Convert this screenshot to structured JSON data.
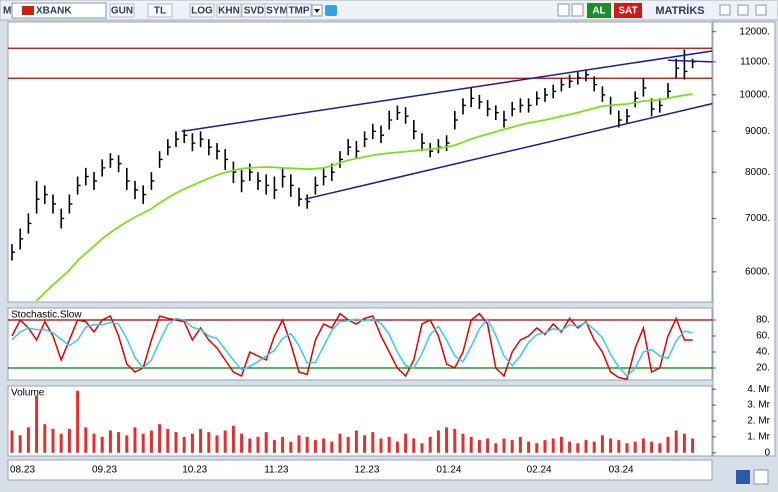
{
  "toolbar": {
    "symbol_prefix": "M",
    "symbol": "XBANK",
    "buttons": [
      "GUN",
      "TL",
      "LOG",
      "KHN",
      "SVD",
      "SYM",
      "TMP"
    ],
    "buy": "AL",
    "sell": "SAT",
    "brand": "MATRİKS"
  },
  "chart_data": [
    {
      "type": "ohlc",
      "log_scale": true,
      "ylim": [
        5500,
        12340
      ],
      "yticks": [
        {
          "value": 12000,
          "label": "12000."
        },
        {
          "value": 11000,
          "label": "11000."
        },
        {
          "value": 10000,
          "label": "10000."
        },
        {
          "value": 9000,
          "label": "9000."
        },
        {
          "value": 8000,
          "label": "8000."
        },
        {
          "value": 7000,
          "label": "7000."
        },
        {
          "value": 6000,
          "label": "6000."
        }
      ],
      "color": "#000000",
      "high": [
        6500,
        6800,
        7100,
        7800,
        7700,
        7500,
        7200,
        7500,
        7900,
        8100,
        8000,
        8300,
        8450,
        8400,
        8100,
        7800,
        7700,
        8000,
        8500,
        8800,
        9000,
        9050,
        8950,
        9000,
        8800,
        8700,
        8550,
        8250,
        8050,
        8200,
        8000,
        7950,
        7900,
        8100,
        7950,
        7650,
        7500,
        7900,
        8100,
        8200,
        8500,
        8800,
        8750,
        9000,
        9200,
        9150,
        9550,
        9700,
        9650,
        9300,
        8950,
        8700,
        8800,
        8900,
        9550,
        9900,
        10200,
        10000,
        9850,
        9700,
        9550,
        9800,
        9900,
        9900,
        10100,
        10200,
        10300,
        10500,
        10600,
        10700,
        10750,
        10550,
        10250,
        9950,
        9550,
        9600,
        10100,
        10500,
        9900,
        9900,
        10350,
        11100,
        11400,
        11100
      ],
      "low": [
        6200,
        6400,
        6700,
        7100,
        7300,
        7100,
        6800,
        7100,
        7500,
        7700,
        7600,
        7900,
        8100,
        8000,
        7600,
        7400,
        7300,
        7600,
        8100,
        8400,
        8600,
        8700,
        8500,
        8600,
        8400,
        8300,
        8050,
        7750,
        7550,
        7800,
        7600,
        7500,
        7400,
        7650,
        7450,
        7250,
        7200,
        7500,
        7700,
        7800,
        8100,
        8400,
        8300,
        8600,
        8800,
        8700,
        9050,
        9300,
        9200,
        8800,
        8500,
        8350,
        8450,
        8500,
        9050,
        9450,
        9650,
        9600,
        9400,
        9300,
        9100,
        9400,
        9500,
        9500,
        9700,
        9800,
        9900,
        10100,
        10200,
        10300,
        10400,
        10100,
        9800,
        9450,
        9100,
        9200,
        9650,
        9950,
        9400,
        9500,
        9900,
        10500,
        10450,
        10800
      ],
      "close": [
        6350,
        6600,
        6900,
        7400,
        7500,
        7300,
        7000,
        7300,
        7700,
        7900,
        7800,
        8100,
        8300,
        8200,
        7800,
        7600,
        7500,
        7800,
        8300,
        8600,
        8800,
        8900,
        8700,
        8800,
        8600,
        8500,
        8300,
        8000,
        7800,
        8000,
        7800,
        7700,
        7600,
        7900,
        7700,
        7400,
        7350,
        7700,
        7900,
        8000,
        8300,
        8600,
        8500,
        8800,
        9000,
        8900,
        9300,
        9500,
        9400,
        9000,
        8700,
        8500,
        8600,
        8700,
        9300,
        9700,
        9900,
        9800,
        9600,
        9500,
        9300,
        9600,
        9700,
        9700,
        9900,
        10000,
        10100,
        10300,
        10400,
        10500,
        10600,
        10300,
        10000,
        9700,
        9300,
        9400,
        9900,
        10200,
        9600,
        9700,
        10100,
        10800,
        10700,
        11000
      ],
      "moving_average": {
        "color": "#7be01e",
        "values": [
          null,
          null,
          null,
          5520,
          5650,
          5780,
          5900,
          6030,
          6200,
          6330,
          6460,
          6600,
          6720,
          6830,
          6930,
          7030,
          7110,
          7200,
          7320,
          7430,
          7530,
          7620,
          7700,
          7780,
          7860,
          7930,
          7990,
          8040,
          8080,
          8100,
          8110,
          8120,
          8110,
          8100,
          8090,
          8080,
          8070,
          8080,
          8100,
          8150,
          8220,
          8280,
          8320,
          8360,
          8400,
          8430,
          8450,
          8470,
          8490,
          8510,
          8530,
          8550,
          8570,
          8600,
          8650,
          8720,
          8800,
          8870,
          8930,
          8990,
          9050,
          9110,
          9170,
          9220,
          9260,
          9300,
          9350,
          9400,
          9450,
          9500,
          9560,
          9620,
          9680,
          9700,
          9720,
          9740,
          9780,
          9820,
          9840,
          9860,
          9900,
          9950,
          9990,
          10020
        ]
      },
      "hlines": [
        {
          "value": 11440,
          "color": "#c00000"
        },
        {
          "value": 10490,
          "color": "#c00000"
        }
      ],
      "trendlines": [
        {
          "x": [
            20.7,
            85.4
          ],
          "y": [
            9000,
            11350
          ],
          "color": "#1c1c9c"
        },
        {
          "x": [
            35.7,
            85.4
          ],
          "y": [
            7400,
            9750
          ],
          "color": "#1c1c9c"
        },
        {
          "x": [
            80.0,
            85.4
          ],
          "y": [
            11050,
            11000
          ],
          "color": "#1c1c9c"
        }
      ]
    },
    {
      "type": "line",
      "title": "Stochastic.Slow",
      "ylim": [
        5,
        95
      ],
      "yticks": [
        {
          "value": 80,
          "label": "80."
        },
        {
          "value": 60,
          "label": "60."
        },
        {
          "value": 40,
          "label": "40."
        },
        {
          "value": 20,
          "label": "20."
        }
      ],
      "hlines": [
        {
          "value": 80,
          "color": "#a00000"
        },
        {
          "value": 20,
          "color": "#008000"
        }
      ],
      "series": [
        {
          "color": "#e00000",
          "values": [
            60,
            80,
            70,
            55,
            78,
            60,
            30,
            55,
            80,
            78,
            65,
            80,
            85,
            60,
            25,
            15,
            20,
            55,
            85,
            82,
            80,
            78,
            55,
            70,
            55,
            45,
            30,
            15,
            10,
            40,
            35,
            30,
            60,
            80,
            50,
            15,
            12,
            55,
            75,
            70,
            88,
            80,
            75,
            82,
            85,
            60,
            40,
            20,
            10,
            30,
            75,
            80,
            60,
            25,
            20,
            40,
            80,
            88,
            75,
            20,
            10,
            40,
            55,
            60,
            70,
            62,
            75,
            65,
            82,
            70,
            78,
            55,
            40,
            15,
            8,
            6,
            45,
            70,
            15,
            20,
            60,
            82,
            55,
            55
          ]
        },
        {
          "color": "#3cc8e8",
          "values": [
            55,
            65,
            70,
            68,
            68,
            64,
            56,
            48,
            55,
            71,
            74,
            74,
            77,
            75,
            57,
            33,
            20,
            30,
            53,
            74,
            82,
            80,
            71,
            68,
            60,
            57,
            43,
            30,
            18,
            22,
            28,
            35,
            42,
            57,
            63,
            48,
            26,
            27,
            47,
            67,
            78,
            79,
            81,
            79,
            81,
            76,
            62,
            40,
            23,
            20,
            38,
            62,
            72,
            55,
            35,
            28,
            47,
            69,
            81,
            61,
            35,
            23,
            35,
            52,
            62,
            64,
            69,
            67,
            74,
            72,
            77,
            68,
            58,
            37,
            21,
            10,
            20,
            40,
            43,
            35,
            32,
            54,
            66,
            64
          ]
        }
      ]
    },
    {
      "type": "bar",
      "title": "Volume",
      "ylim": [
        -0.2,
        4.2
      ],
      "color": "#e03030",
      "yticks": [
        {
          "value": 4,
          "label": "4. Mr"
        },
        {
          "value": 3,
          "label": "3. Mr"
        },
        {
          "value": 2,
          "label": "2. Mr"
        },
        {
          "value": 1,
          "label": "1. Mr"
        },
        0
      ],
      "categories": [
        "08.23",
        null,
        null,
        null,
        null,
        null,
        null,
        null,
        null,
        null,
        "09.23",
        null,
        null,
        null,
        null,
        null,
        null,
        null,
        null,
        null,
        null,
        "10.23",
        null,
        null,
        null,
        null,
        null,
        null,
        null,
        null,
        null,
        "11.23",
        null,
        null,
        null,
        null,
        null,
        null,
        null,
        null,
        null,
        null,
        "12.23",
        null,
        null,
        null,
        null,
        null,
        null,
        null,
        null,
        null,
        "01.24",
        null,
        null,
        null,
        null,
        null,
        null,
        null,
        null,
        null,
        null,
        "02.24",
        null,
        null,
        null,
        null,
        null,
        null,
        null,
        null,
        null,
        "03.24",
        null,
        null,
        null,
        null,
        null,
        null,
        null,
        null,
        null,
        null
      ],
      "values": [
        1.4,
        1.1,
        1.6,
        3.6,
        1.8,
        1.5,
        1.2,
        1.5,
        3.9,
        1.6,
        1.2,
        1.0,
        1.4,
        1.3,
        1.1,
        1.6,
        1.2,
        1.4,
        1.8,
        1.5,
        1.3,
        1.0,
        1.2,
        1.5,
        1.3,
        1.1,
        1.4,
        1.7,
        1.2,
        0.9,
        1.0,
        1.3,
        0.8,
        1.0,
        0.7,
        1.1,
        1.0,
        0.8,
        0.9,
        0.7,
        1.2,
        1.0,
        1.4,
        1.1,
        1.3,
        0.9,
        1.0,
        0.7,
        1.2,
        0.9,
        0.6,
        1.0,
        1.4,
        1.6,
        1.5,
        1.2,
        1.0,
        0.8,
        0.9,
        0.6,
        0.9,
        0.8,
        1.0,
        0.7,
        0.6,
        0.8,
        0.9,
        1.0,
        0.7,
        0.6,
        0.8,
        0.7,
        1.1,
        0.9,
        0.8,
        0.6,
        0.7,
        0.9,
        0.7,
        0.6,
        1.0,
        1.4,
        1.2,
        0.9
      ]
    }
  ]
}
